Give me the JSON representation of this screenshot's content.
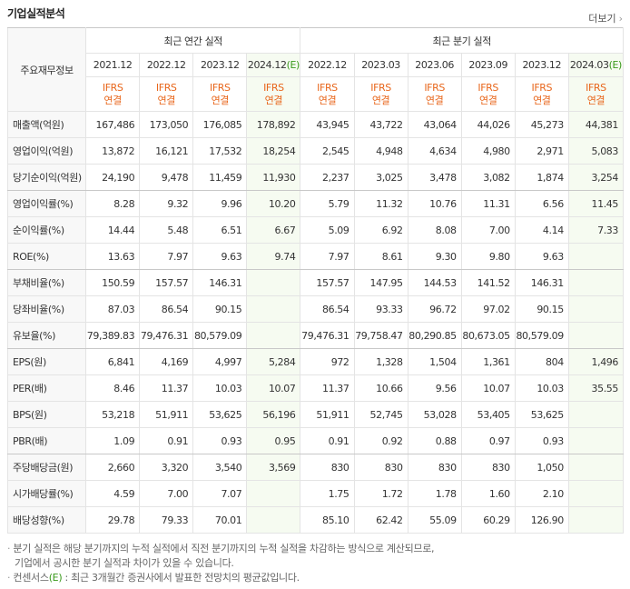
{
  "header": {
    "title": "기업실적분석",
    "more": "더보기"
  },
  "table": {
    "corner": "주요재무정보",
    "groups": [
      {
        "label": "최근 연간 실적",
        "span": 4
      },
      {
        "label": "최근 분기 실적",
        "span": 6
      }
    ],
    "columns": [
      {
        "period": "2021.12",
        "accounting": "IFRS",
        "basis": "연결"
      },
      {
        "period": "2022.12",
        "accounting": "IFRS",
        "basis": "연결"
      },
      {
        "period": "2023.12",
        "accounting": "IFRS",
        "basis": "연결"
      },
      {
        "period": "2024.12",
        "estimate": "(E)",
        "accounting": "IFRS",
        "basis": "연결"
      },
      {
        "period": "2022.12",
        "accounting": "IFRS",
        "basis": "연결"
      },
      {
        "period": "2023.03",
        "accounting": "IFRS",
        "basis": "연결"
      },
      {
        "period": "2023.06",
        "accounting": "IFRS",
        "basis": "연결"
      },
      {
        "period": "2023.09",
        "accounting": "IFRS",
        "basis": "연결"
      },
      {
        "period": "2023.12",
        "accounting": "IFRS",
        "basis": "연결"
      },
      {
        "period": "2024.03",
        "estimate": "(E)",
        "accounting": "IFRS",
        "basis": "연결"
      }
    ],
    "rows": [
      {
        "label": "매출액(억원)",
        "values": [
          "167,486",
          "173,050",
          "176,085",
          "178,892",
          "43,945",
          "43,722",
          "43,064",
          "44,026",
          "45,273",
          "44,381"
        ]
      },
      {
        "label": "영업이익(억원)",
        "values": [
          "13,872",
          "16,121",
          "17,532",
          "18,254",
          "2,545",
          "4,948",
          "4,634",
          "4,980",
          "2,971",
          "5,083"
        ]
      },
      {
        "label": "당기순이익(억원)",
        "group_end": true,
        "values": [
          "24,190",
          "9,478",
          "11,459",
          "11,930",
          "2,237",
          "3,025",
          "3,478",
          "3,082",
          "1,874",
          "3,254"
        ]
      },
      {
        "label": "영업이익률(%)",
        "values": [
          "8.28",
          "9.32",
          "9.96",
          "10.20",
          "5.79",
          "11.32",
          "10.76",
          "11.31",
          "6.56",
          "11.45"
        ]
      },
      {
        "label": "순이익률(%)",
        "values": [
          "14.44",
          "5.48",
          "6.51",
          "6.67",
          "5.09",
          "6.92",
          "8.08",
          "7.00",
          "4.14",
          "7.33"
        ]
      },
      {
        "label": "ROE(%)",
        "group_end": true,
        "values": [
          "13.63",
          "7.97",
          "9.63",
          "9.74",
          "7.97",
          "8.61",
          "9.30",
          "9.80",
          "9.63",
          null
        ]
      },
      {
        "label": "부채비율(%)",
        "values": [
          "150.59",
          "157.57",
          "146.31",
          null,
          "157.57",
          "147.95",
          "144.53",
          "141.52",
          "146.31",
          null
        ]
      },
      {
        "label": "당좌비율(%)",
        "values": [
          "87.03",
          "86.54",
          "90.15",
          null,
          "86.54",
          "93.33",
          "96.72",
          "97.02",
          "90.15",
          null
        ]
      },
      {
        "label": "유보율(%)",
        "group_end": true,
        "values": [
          "79,389.83",
          "79,476.31",
          "80,579.09",
          null,
          "79,476.31",
          "79,758.47",
          "80,290.85",
          "80,673.05",
          "80,579.09",
          null
        ]
      },
      {
        "label": "EPS(원)",
        "values": [
          "6,841",
          "4,169",
          "4,997",
          "5,284",
          "972",
          "1,328",
          "1,504",
          "1,361",
          "804",
          "1,496"
        ]
      },
      {
        "label": "PER(배)",
        "values": [
          "8.46",
          "11.37",
          "10.03",
          "10.07",
          "11.37",
          "10.66",
          "9.56",
          "10.07",
          "10.03",
          "35.55"
        ]
      },
      {
        "label": "BPS(원)",
        "values": [
          "53,218",
          "51,911",
          "53,625",
          "56,196",
          "51,911",
          "52,745",
          "53,028",
          "53,405",
          "53,625",
          null
        ]
      },
      {
        "label": "PBR(배)",
        "group_end": true,
        "values": [
          "1.09",
          "0.91",
          "0.93",
          "0.95",
          "0.91",
          "0.92",
          "0.88",
          "0.97",
          "0.93",
          null
        ]
      },
      {
        "label": "주당배당금(원)",
        "values": [
          "2,660",
          "3,320",
          "3,540",
          "3,569",
          "830",
          "830",
          "830",
          "830",
          "1,050",
          null
        ]
      },
      {
        "label": "시가배당률(%)",
        "values": [
          "4.59",
          "7.00",
          "7.07",
          null,
          "1.75",
          "1.72",
          "1.78",
          "1.60",
          "2.10",
          null
        ]
      },
      {
        "label": "배당성향(%)",
        "values": [
          "29.78",
          "79.33",
          "70.01",
          null,
          "85.10",
          "62.42",
          "55.09",
          "60.29",
          "126.90",
          null
        ]
      }
    ]
  },
  "notes": [
    {
      "lines": [
        "분기 실적은 해당 분기까지의 누적 실적에서 직전 분기까지의 누적 실적을 차감하는 방식으로 계산되므로,",
        "기업에서 공시한 분기 실적과 차이가 있을 수 있습니다."
      ]
    },
    {
      "prefix": "컨센서스",
      "marker": "(E)",
      "suffix": " : 최근 3개월간 증권사에서 발표한 전망치의 평균값입니다."
    }
  ]
}
